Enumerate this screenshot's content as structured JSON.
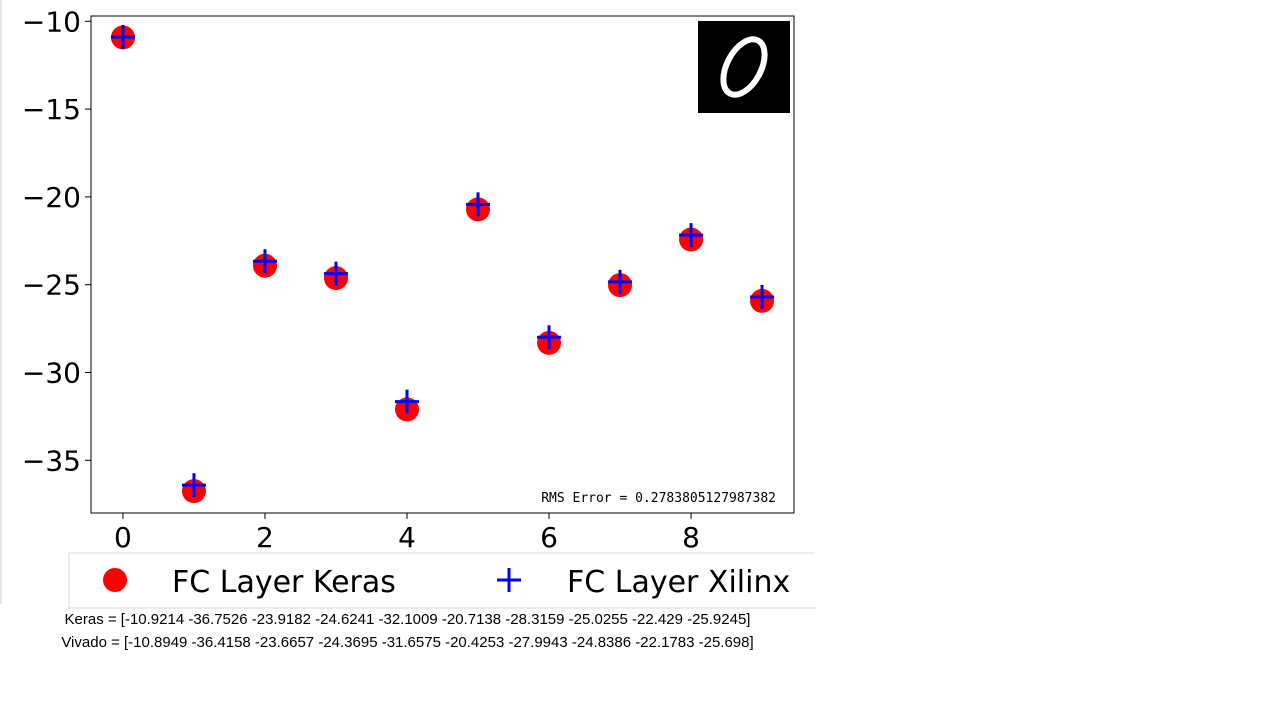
{
  "chart_data": {
    "type": "scatter",
    "x": [
      0,
      1,
      2,
      3,
      4,
      5,
      6,
      7,
      8,
      9
    ],
    "series": [
      {
        "name": "FC Layer Keras",
        "marker": "circle",
        "color": "#ff0000",
        "values": [
          -10.9214,
          -36.7526,
          -23.9182,
          -24.6241,
          -32.1009,
          -20.7138,
          -28.3159,
          -25.0255,
          -22.429,
          -25.9245
        ]
      },
      {
        "name": "FC Layer Xilinx",
        "marker": "plus",
        "color": "#0000ff",
        "values": [
          -10.8949,
          -36.4158,
          -23.6657,
          -24.3695,
          -31.6575,
          -20.4253,
          -27.9943,
          -24.8386,
          -22.1783,
          -25.698
        ]
      }
    ],
    "xticks": [
      0,
      2,
      4,
      6,
      8
    ],
    "yticks": [
      -10,
      -15,
      -20,
      -25,
      -30,
      -35
    ],
    "xlim": [
      -0.45,
      9.45
    ],
    "ylim": [
      -38.0,
      -9.7
    ],
    "annotation": "RMS Error = 0.2783805127987382",
    "legend_placement": "below",
    "grid": false,
    "inset_image": "handwritten-digit-zero"
  },
  "captions": {
    "keras": "Keras = [-10.9214 -36.7526 -23.9182 -24.6241 -32.1009 -20.7138 -28.3159 -25.0255  -22.429  -25.9245]",
    "vivado": "Vivado = [-10.8949 -36.4158 -23.6657 -24.3695 -31.6575 -20.4253 -27.9943 -24.8386  -22.1783 -25.698]"
  }
}
